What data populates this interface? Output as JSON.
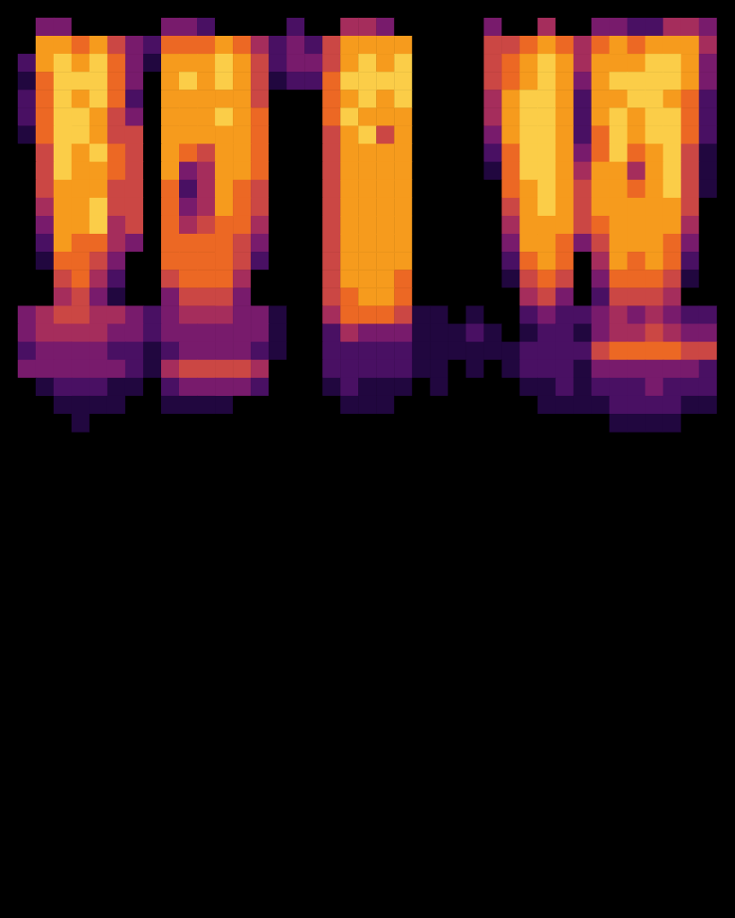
{
  "chart_data": {
    "type": "heatmap",
    "xlim": [
      0,
      41
    ],
    "ylim": [
      0,
      51
    ],
    "value_range": [
      0,
      9
    ],
    "tick_labels": false,
    "grid": false,
    "cells": [
      [
        0,
        0,
        0,
        0,
        0,
        0,
        0,
        0,
        0,
        0,
        0,
        0,
        0,
        0,
        0,
        0,
        0,
        0,
        0,
        0,
        0,
        0,
        0,
        0,
        0,
        0,
        0,
        0,
        0,
        0,
        0,
        0,
        0,
        0,
        0,
        0,
        0,
        0,
        0,
        0,
        0
      ],
      [
        0,
        0,
        3,
        3,
        0,
        0,
        0,
        0,
        0,
        3,
        3,
        2,
        0,
        0,
        0,
        0,
        2,
        0,
        0,
        4,
        4,
        3,
        0,
        0,
        0,
        0,
        0,
        3,
        0,
        0,
        4,
        0,
        0,
        3,
        3,
        2,
        2,
        4,
        4,
        3,
        0
      ],
      [
        0,
        0,
        7,
        7,
        6,
        7,
        5,
        3,
        2,
        6,
        6,
        6,
        7,
        6,
        4,
        2,
        3,
        2,
        5,
        7,
        7,
        7,
        7,
        0,
        0,
        0,
        0,
        5,
        5,
        6,
        7,
        6,
        4,
        6,
        7,
        6,
        7,
        7,
        7,
        4,
        0
      ],
      [
        0,
        2,
        7,
        8,
        7,
        8,
        6,
        3,
        1,
        7,
        7,
        7,
        8,
        7,
        5,
        2,
        3,
        3,
        5,
        7,
        8,
        7,
        8,
        0,
        0,
        0,
        0,
        5,
        6,
        7,
        8,
        7,
        4,
        7,
        7,
        7,
        8,
        8,
        7,
        3,
        0
      ],
      [
        0,
        1,
        6,
        8,
        8,
        8,
        6,
        3,
        0,
        7,
        8,
        7,
        8,
        7,
        5,
        1,
        2,
        2,
        6,
        8,
        8,
        8,
        8,
        0,
        0,
        0,
        0,
        5,
        6,
        7,
        8,
        7,
        3,
        7,
        8,
        8,
        8,
        8,
        7,
        3,
        0
      ],
      [
        0,
        2,
        6,
        8,
        7,
        8,
        6,
        2,
        0,
        7,
        7,
        7,
        7,
        7,
        5,
        0,
        0,
        0,
        6,
        7,
        8,
        7,
        8,
        0,
        0,
        0,
        0,
        4,
        7,
        8,
        8,
        7,
        2,
        7,
        7,
        8,
        8,
        7,
        6,
        2,
        0
      ],
      [
        0,
        2,
        6,
        8,
        8,
        7,
        5,
        3,
        0,
        7,
        7,
        7,
        8,
        7,
        6,
        0,
        0,
        0,
        6,
        8,
        7,
        7,
        7,
        0,
        0,
        0,
        0,
        4,
        7,
        8,
        8,
        7,
        2,
        7,
        8,
        7,
        8,
        8,
        6,
        2,
        0
      ],
      [
        0,
        1,
        6,
        8,
        8,
        7,
        5,
        5,
        0,
        7,
        7,
        7,
        7,
        7,
        6,
        0,
        0,
        0,
        5,
        7,
        8,
        5,
        7,
        0,
        0,
        0,
        0,
        3,
        7,
        8,
        8,
        7,
        2,
        6,
        8,
        7,
        8,
        8,
        6,
        2,
        0
      ],
      [
        0,
        0,
        5,
        8,
        7,
        8,
        6,
        5,
        0,
        7,
        6,
        5,
        7,
        7,
        6,
        0,
        0,
        0,
        5,
        7,
        7,
        7,
        7,
        0,
        0,
        0,
        0,
        2,
        6,
        8,
        8,
        7,
        3,
        6,
        8,
        6,
        7,
        8,
        5,
        1,
        0
      ],
      [
        0,
        0,
        5,
        8,
        7,
        7,
        6,
        5,
        0,
        7,
        3,
        4,
        7,
        7,
        6,
        0,
        0,
        0,
        5,
        7,
        7,
        7,
        7,
        0,
        0,
        0,
        0,
        1,
        6,
        8,
        8,
        7,
        4,
        7,
        7,
        4,
        7,
        8,
        5,
        1,
        0
      ],
      [
        0,
        0,
        5,
        7,
        7,
        7,
        5,
        5,
        0,
        6,
        2,
        4,
        7,
        6,
        5,
        0,
        0,
        0,
        5,
        7,
        7,
        7,
        7,
        0,
        0,
        0,
        0,
        0,
        6,
        7,
        8,
        7,
        5,
        7,
        7,
        6,
        7,
        8,
        5,
        1,
        0
      ],
      [
        0,
        0,
        4,
        7,
        7,
        8,
        5,
        5,
        0,
        6,
        3,
        4,
        7,
        6,
        5,
        0,
        0,
        0,
        5,
        7,
        7,
        7,
        7,
        0,
        0,
        0,
        0,
        0,
        5,
        7,
        8,
        7,
        5,
        7,
        7,
        7,
        7,
        7,
        5,
        0,
        0
      ],
      [
        0,
        0,
        3,
        7,
        7,
        8,
        4,
        5,
        0,
        6,
        4,
        5,
        6,
        6,
        4,
        0,
        0,
        0,
        5,
        7,
        7,
        7,
        7,
        0,
        0,
        0,
        0,
        0,
        4,
        7,
        7,
        7,
        5,
        6,
        7,
        7,
        7,
        7,
        4,
        0,
        0
      ],
      [
        0,
        0,
        2,
        7,
        6,
        6,
        4,
        3,
        0,
        6,
        6,
        6,
        6,
        5,
        3,
        0,
        0,
        0,
        5,
        7,
        7,
        7,
        7,
        0,
        0,
        0,
        0,
        0,
        3,
        7,
        7,
        6,
        3,
        5,
        7,
        7,
        7,
        6,
        3,
        0,
        0
      ],
      [
        0,
        0,
        1,
        6,
        6,
        5,
        3,
        0,
        0,
        6,
        6,
        6,
        6,
        5,
        2,
        0,
        0,
        0,
        5,
        7,
        7,
        7,
        7,
        0,
        0,
        0,
        0,
        0,
        2,
        6,
        7,
        6,
        0,
        4,
        7,
        6,
        7,
        6,
        2,
        0,
        0
      ],
      [
        0,
        0,
        0,
        5,
        6,
        4,
        2,
        0,
        0,
        5,
        6,
        6,
        6,
        4,
        0,
        0,
        0,
        0,
        5,
        7,
        7,
        7,
        6,
        0,
        0,
        0,
        0,
        0,
        1,
        5,
        6,
        5,
        0,
        3,
        6,
        6,
        6,
        5,
        1,
        0,
        0
      ],
      [
        0,
        0,
        0,
        4,
        5,
        3,
        1,
        0,
        0,
        3,
        5,
        5,
        5,
        3,
        0,
        0,
        0,
        0,
        5,
        6,
        7,
        7,
        6,
        0,
        0,
        0,
        0,
        0,
        0,
        4,
        5,
        3,
        0,
        2,
        5,
        5,
        5,
        4,
        0,
        0,
        0
      ],
      [
        0,
        3,
        4,
        5,
        5,
        4,
        4,
        3,
        2,
        3,
        4,
        4,
        4,
        3,
        3,
        1,
        0,
        0,
        4,
        6,
        6,
        6,
        5,
        1,
        1,
        0,
        1,
        0,
        0,
        2,
        3,
        2,
        2,
        3,
        4,
        3,
        4,
        3,
        2,
        2,
        0
      ],
      [
        0,
        3,
        4,
        4,
        4,
        4,
        3,
        3,
        2,
        3,
        3,
        3,
        3,
        3,
        3,
        1,
        0,
        0,
        2,
        4,
        3,
        3,
        3,
        1,
        1,
        1,
        2,
        1,
        0,
        1,
        2,
        2,
        1,
        3,
        4,
        4,
        5,
        4,
        3,
        3,
        0
      ],
      [
        0,
        2,
        3,
        3,
        3,
        3,
        2,
        2,
        1,
        2,
        3,
        3,
        3,
        3,
        2,
        1,
        0,
        0,
        2,
        2,
        2,
        2,
        2,
        1,
        1,
        1,
        1,
        1,
        1,
        2,
        2,
        2,
        2,
        5,
        6,
        6,
        6,
        6,
        5,
        5,
        0
      ],
      [
        0,
        3,
        3,
        3,
        3,
        3,
        3,
        2,
        1,
        4,
        5,
        5,
        5,
        5,
        4,
        0,
        0,
        0,
        2,
        2,
        2,
        2,
        2,
        1,
        1,
        0,
        1,
        0,
        1,
        2,
        2,
        2,
        1,
        3,
        3,
        3,
        3,
        3,
        3,
        2,
        0
      ],
      [
        0,
        0,
        1,
        2,
        2,
        2,
        1,
        1,
        0,
        2,
        3,
        3,
        3,
        3,
        2,
        0,
        0,
        0,
        1,
        2,
        1,
        1,
        1,
        0,
        1,
        0,
        0,
        0,
        0,
        1,
        1,
        2,
        1,
        2,
        2,
        2,
        3,
        2,
        2,
        2,
        0
      ],
      [
        0,
        0,
        0,
        1,
        1,
        1,
        1,
        0,
        0,
        1,
        1,
        1,
        1,
        0,
        0,
        0,
        0,
        0,
        0,
        1,
        1,
        1,
        0,
        0,
        0,
        0,
        0,
        0,
        0,
        0,
        1,
        1,
        1,
        1,
        2,
        2,
        2,
        2,
        1,
        1,
        0
      ],
      [
        0,
        0,
        0,
        0,
        1,
        0,
        0,
        0,
        0,
        0,
        0,
        0,
        0,
        0,
        0,
        0,
        0,
        0,
        0,
        0,
        0,
        0,
        0,
        0,
        0,
        0,
        0,
        0,
        0,
        0,
        0,
        0,
        0,
        0,
        1,
        1,
        1,
        1,
        0,
        0,
        0
      ]
    ]
  }
}
